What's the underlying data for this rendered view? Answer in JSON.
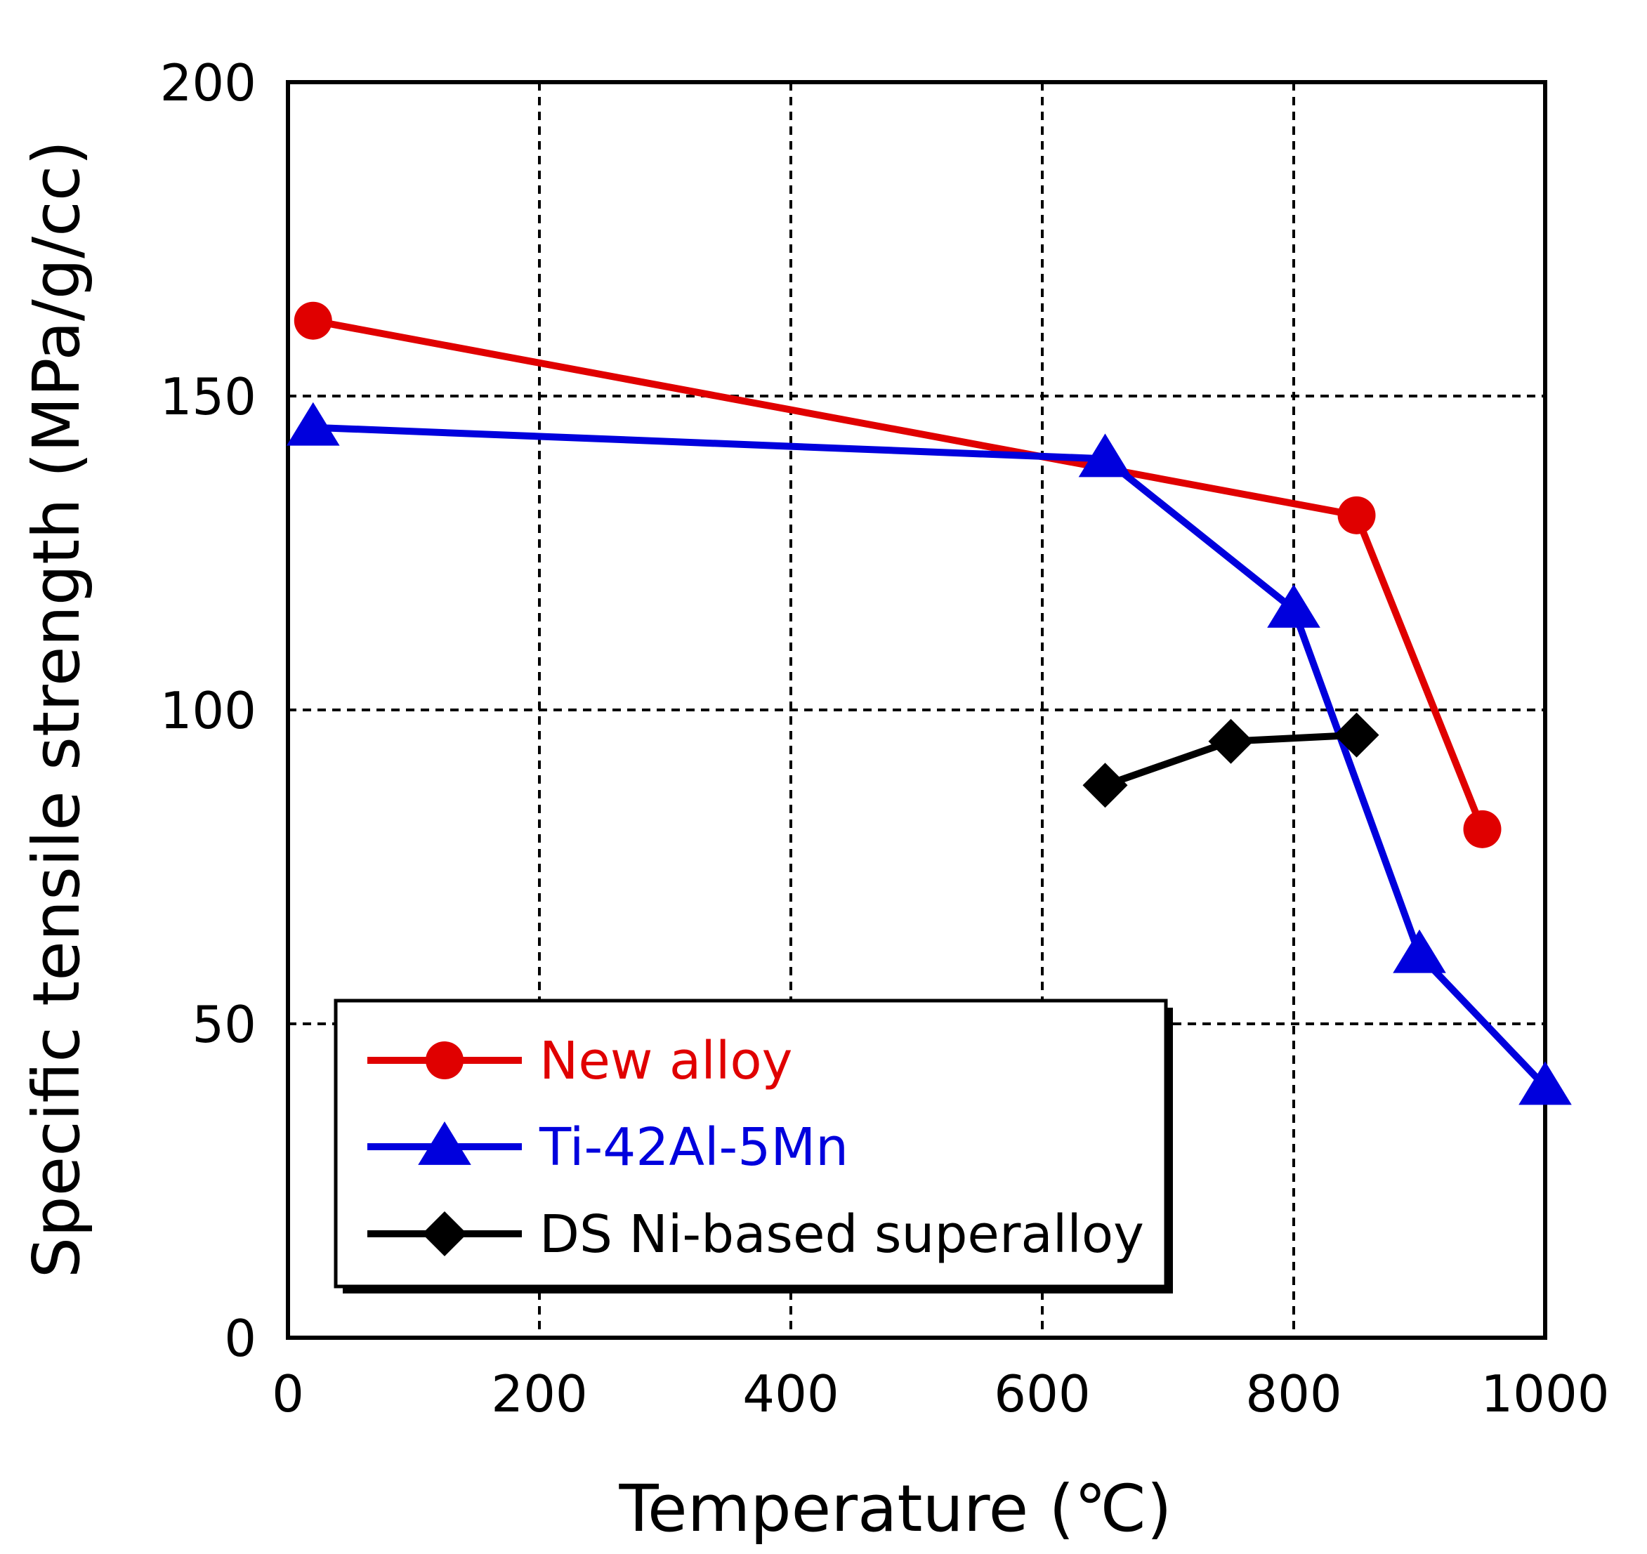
{
  "chart_data": {
    "type": "line",
    "title": "",
    "xlabel": "Temperature (℃)",
    "ylabel": "Specific tensile strength (MPa/g/cc)",
    "xlim": [
      0,
      1000
    ],
    "ylim": [
      0,
      200
    ],
    "xticks": [
      0,
      200,
      400,
      600,
      800,
      1000
    ],
    "yticks": [
      0,
      50,
      100,
      150,
      200
    ],
    "x_grid_values": [
      200,
      400,
      600,
      800
    ],
    "y_grid_values": [
      50,
      100,
      150
    ],
    "grid": true,
    "legend_position": "bottom-left",
    "series": [
      {
        "name": "New alloy",
        "color": "#e00000",
        "marker": "circle",
        "x": [
          20,
          850,
          950
        ],
        "y": [
          162,
          131,
          81
        ]
      },
      {
        "name": "Ti-42Al-5Mn",
        "color": "#0000dd",
        "marker": "triangle",
        "x": [
          20,
          650,
          800,
          900,
          1000
        ],
        "y": [
          145,
          140,
          116,
          61,
          40
        ]
      },
      {
        "name": "DS Ni-based superalloy",
        "color": "#000000",
        "marker": "diamond",
        "x": [
          650,
          750,
          850
        ],
        "y": [
          88,
          95,
          96
        ]
      }
    ]
  }
}
